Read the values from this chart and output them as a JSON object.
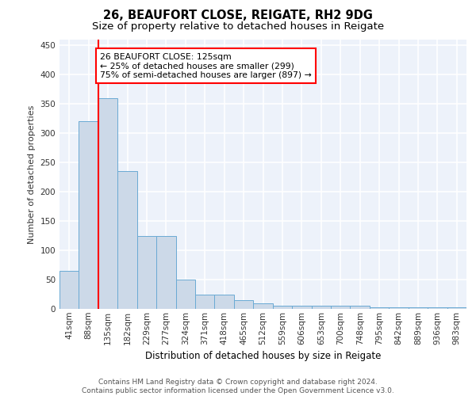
{
  "title": "26, BEAUFORT CLOSE, REIGATE, RH2 9DG",
  "subtitle": "Size of property relative to detached houses in Reigate",
  "xlabel": "Distribution of detached houses by size in Reigate",
  "ylabel": "Number of detached properties",
  "categories": [
    "41sqm",
    "88sqm",
    "135sqm",
    "182sqm",
    "229sqm",
    "277sqm",
    "324sqm",
    "371sqm",
    "418sqm",
    "465sqm",
    "512sqm",
    "559sqm",
    "606sqm",
    "653sqm",
    "700sqm",
    "748sqm",
    "795sqm",
    "842sqm",
    "889sqm",
    "936sqm",
    "983sqm"
  ],
  "values": [
    65,
    320,
    360,
    235,
    125,
    125,
    50,
    25,
    25,
    15,
    10,
    5,
    5,
    5,
    5,
    5,
    3,
    3,
    3,
    3,
    3
  ],
  "bar_color": "#ccd9e8",
  "bar_edge_color": "#6aaad4",
  "red_line_x": 1.5,
  "annotation_line1": "26 BEAUFORT CLOSE: 125sqm",
  "annotation_line2": "← 25% of detached houses are smaller (299)",
  "annotation_line3": "75% of semi-detached houses are larger (897) →",
  "footer": "Contains HM Land Registry data © Crown copyright and database right 2024.\nContains public sector information licensed under the Open Government Licence v3.0.",
  "ylim": [
    0,
    460
  ],
  "yticks": [
    0,
    50,
    100,
    150,
    200,
    250,
    300,
    350,
    400,
    450
  ],
  "plot_bg_color": "#edf2fa",
  "grid_color": "white",
  "title_fontsize": 10.5,
  "subtitle_fontsize": 9.5,
  "ylabel_fontsize": 8,
  "xlabel_fontsize": 8.5,
  "tick_fontsize": 7.5,
  "footer_fontsize": 6.5
}
